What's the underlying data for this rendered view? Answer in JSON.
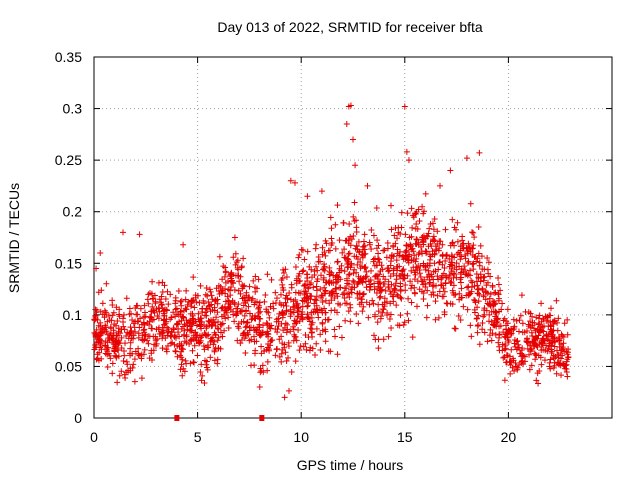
{
  "chart_data": {
    "type": "scatter",
    "title": "Day 013 of 2022, SRMTID for receiver bfta",
    "xlabel": "GPS time / hours",
    "ylabel": "SRMTID / TECUs",
    "xlim": [
      0,
      25
    ],
    "ylim": [
      0,
      0.35
    ],
    "xticks": [
      0,
      5,
      10,
      15,
      20
    ],
    "xtick_labels": [
      "0",
      "5",
      "10",
      "15",
      "20"
    ],
    "yticks": [
      0,
      0.05,
      0.1,
      0.15,
      0.2,
      0.25,
      0.3,
      0.35
    ],
    "ytick_labels": [
      "0",
      "0.05",
      "0.1",
      "0.15",
      "0.2",
      "0.25",
      "0.3",
      "0.35"
    ],
    "grid": true,
    "marker": "+",
    "color": "#e60000",
    "series": [
      {
        "name": "SRMTID",
        "trend": [
          [
            0.0,
            0.085
          ],
          [
            0.5,
            0.08
          ],
          [
            1.0,
            0.075
          ],
          [
            1.5,
            0.07
          ],
          [
            2.0,
            0.078
          ],
          [
            2.5,
            0.09
          ],
          [
            3.0,
            0.1
          ],
          [
            3.5,
            0.095
          ],
          [
            4.0,
            0.085
          ],
          [
            4.5,
            0.09
          ],
          [
            5.0,
            0.085
          ],
          [
            5.5,
            0.09
          ],
          [
            6.0,
            0.095
          ],
          [
            6.5,
            0.12
          ],
          [
            7.0,
            0.12
          ],
          [
            7.5,
            0.095
          ],
          [
            8.0,
            0.085
          ],
          [
            8.5,
            0.09
          ],
          [
            9.0,
            0.095
          ],
          [
            9.5,
            0.1
          ],
          [
            10.0,
            0.11
          ],
          [
            10.5,
            0.115
          ],
          [
            11.0,
            0.12
          ],
          [
            11.5,
            0.13
          ],
          [
            12.0,
            0.14
          ],
          [
            12.5,
            0.145
          ],
          [
            13.0,
            0.14
          ],
          [
            13.5,
            0.135
          ],
          [
            14.0,
            0.13
          ],
          [
            14.5,
            0.14
          ],
          [
            15.0,
            0.15
          ],
          [
            15.5,
            0.155
          ],
          [
            16.0,
            0.155
          ],
          [
            16.5,
            0.15
          ],
          [
            17.0,
            0.145
          ],
          [
            17.5,
            0.145
          ],
          [
            18.0,
            0.15
          ],
          [
            18.5,
            0.13
          ],
          [
            19.0,
            0.11
          ],
          [
            19.5,
            0.095
          ],
          [
            20.0,
            0.075
          ],
          [
            20.5,
            0.07
          ],
          [
            21.0,
            0.075
          ],
          [
            21.5,
            0.08
          ],
          [
            22.0,
            0.075
          ],
          [
            22.5,
            0.07
          ],
          [
            22.9,
            0.06
          ]
        ],
        "spread": [
          [
            0.0,
            0.03
          ],
          [
            9.0,
            0.04
          ],
          [
            11.5,
            0.05
          ],
          [
            13.0,
            0.045
          ],
          [
            15.0,
            0.05
          ],
          [
            17.0,
            0.045
          ],
          [
            18.5,
            0.04
          ],
          [
            20.0,
            0.03
          ],
          [
            22.9,
            0.025
          ]
        ],
        "outliers": [
          [
            12.3,
            0.302
          ],
          [
            12.4,
            0.303
          ],
          [
            12.2,
            0.285
          ],
          [
            12.5,
            0.27
          ],
          [
            12.6,
            0.245
          ],
          [
            15.0,
            0.302
          ],
          [
            15.1,
            0.258
          ],
          [
            15.2,
            0.25
          ],
          [
            18.6,
            0.257
          ],
          [
            18.0,
            0.252
          ],
          [
            16.7,
            0.225
          ],
          [
            9.5,
            0.23
          ],
          [
            9.7,
            0.228
          ],
          [
            0.3,
            0.16
          ],
          [
            0.1,
            0.145
          ],
          [
            4.3,
            0.168
          ],
          [
            6.8,
            0.175
          ],
          [
            2.2,
            0.178
          ],
          [
            1.4,
            0.18
          ],
          [
            8.0,
            0.03
          ],
          [
            9.2,
            0.02
          ],
          [
            10.3,
            0.215
          ],
          [
            11.0,
            0.22
          ],
          [
            13.2,
            0.225
          ],
          [
            17.2,
            0.24
          ]
        ],
        "zero_markers": [
          [
            4.0,
            0.0
          ],
          [
            8.1,
            0.0
          ]
        ]
      }
    ]
  }
}
